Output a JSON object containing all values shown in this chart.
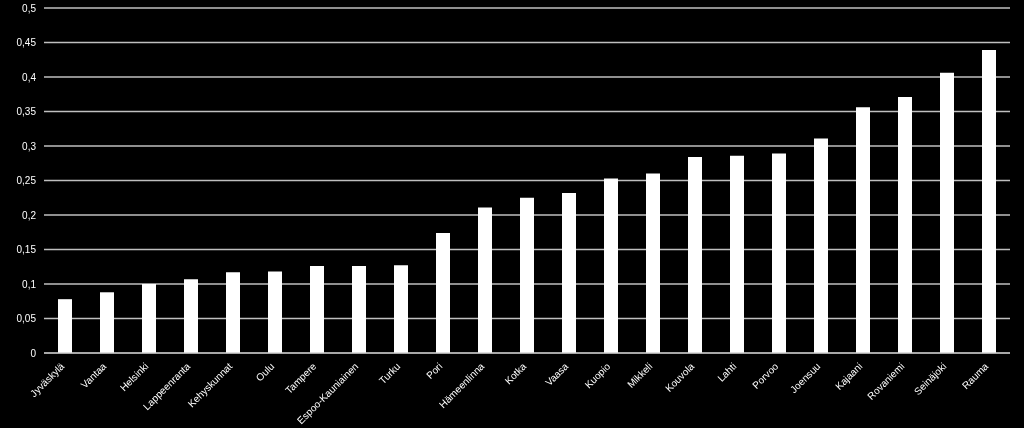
{
  "chart_data": {
    "type": "bar",
    "categories": [
      "Jyväskylä",
      "Vantaa",
      "Helsinki",
      "Lappeenranta",
      "Kehyskunnat",
      "Oulu",
      "Tampere",
      "Espoo-Kauniainen",
      "Turku",
      "Pori",
      "Hämeenlinna",
      "Kotka",
      "Vaasa",
      "Kuopio",
      "Mikkeli",
      "Kouvola",
      "Lahti",
      "Porvoo",
      "Joensuu",
      "Kajaani",
      "Rovaniemi",
      "Seinäjoki",
      "Rauma"
    ],
    "values": [
      0.078,
      0.088,
      0.1,
      0.107,
      0.117,
      0.118,
      0.126,
      0.126,
      0.127,
      0.174,
      0.211,
      0.225,
      0.232,
      0.253,
      0.26,
      0.284,
      0.286,
      0.289,
      0.311,
      0.356,
      0.371,
      0.406,
      0.439
    ],
    "color": "#ffffff",
    "ylim": [
      0,
      0.5
    ],
    "yticks": [
      {
        "value": 0,
        "label": "0"
      },
      {
        "value": 0.05,
        "label": "0,05"
      },
      {
        "value": 0.1,
        "label": "0,1"
      },
      {
        "value": 0.15,
        "label": "0,15"
      },
      {
        "value": 0.2,
        "label": "0,2"
      },
      {
        "value": 0.25,
        "label": "0,25"
      },
      {
        "value": 0.3,
        "label": "0,3"
      },
      {
        "value": 0.35,
        "label": "0,35"
      },
      {
        "value": 0.4,
        "label": "0,4"
      },
      {
        "value": 0.45,
        "label": "0,45"
      },
      {
        "value": 0.5,
        "label": "0,5"
      }
    ],
    "grid": "y"
  }
}
